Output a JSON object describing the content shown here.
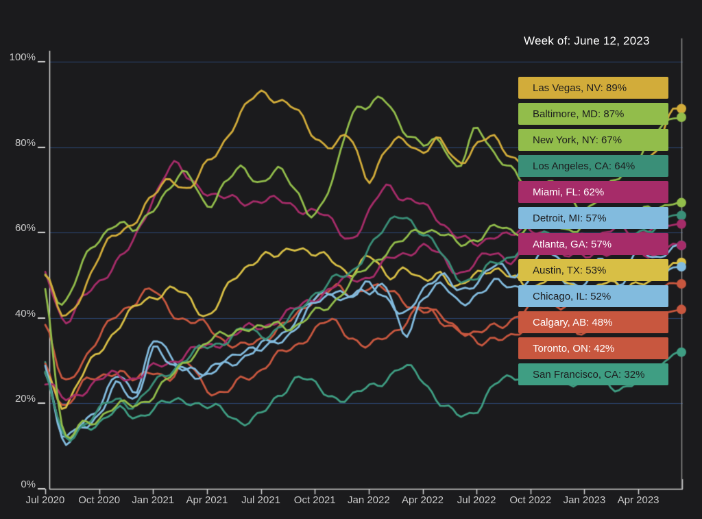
{
  "header": {
    "week_label": "Week of: June 12, 2023"
  },
  "colors": {
    "background": "#1b1b1d",
    "grid_line": "#2b4570",
    "axis_line": "#d6d6d6",
    "tick_text": "#c9c9c9",
    "header_text": "#ffffff",
    "cursor_line": "#8d8d8d",
    "chip_text_dark": "#1c1c1e",
    "chip_text_light": "#ffffff"
  },
  "chart_data": {
    "type": "line",
    "title": "",
    "cursor_date_label": "Week of: June 12, 2023",
    "x_unit": "month",
    "y_unit": "%",
    "ylim": [
      0,
      100
    ],
    "grid": "horizontal",
    "legend_position": "right",
    "months": [
      "Jul 2020",
      "Aug 2020",
      "Sep 2020",
      "Oct 2020",
      "Nov 2020",
      "Dec 2020",
      "Jan 2021",
      "Feb 2021",
      "Mar 2021",
      "Apr 2021",
      "May 2021",
      "Jun 2021",
      "Jul 2021",
      "Aug 2021",
      "Sep 2021",
      "Oct 2021",
      "Nov 2021",
      "Dec 2021",
      "Jan 2022",
      "Feb 2022",
      "Mar 2022",
      "Apr 2022",
      "May 2022",
      "Jun 2022",
      "Jul 2022",
      "Aug 2022",
      "Sep 2022",
      "Oct 2022",
      "Nov 2022",
      "Dec 2022",
      "Jan 2023",
      "Feb 2023",
      "Mar 2023",
      "Apr 2023",
      "May 2023",
      "Jun 2023"
    ],
    "x_ticks": [
      {
        "label": "Jul 2020",
        "month": 0
      },
      {
        "label": "Oct 2020",
        "month": 3
      },
      {
        "label": "Jan 2021",
        "month": 6
      },
      {
        "label": "Apr 2021",
        "month": 9
      },
      {
        "label": "Jul 2021",
        "month": 12
      },
      {
        "label": "Oct 2021",
        "month": 15
      },
      {
        "label": "Jan 2022",
        "month": 18
      },
      {
        "label": "Apr 2022",
        "month": 21
      },
      {
        "label": "Jul 2022",
        "month": 24
      },
      {
        "label": "Oct 2022",
        "month": 27
      },
      {
        "label": "Jan 2023",
        "month": 30
      },
      {
        "label": "Apr 2023",
        "month": 33
      }
    ],
    "y_ticks": [
      {
        "label": "100%",
        "value": 100
      },
      {
        "label": "80%",
        "value": 80
      },
      {
        "label": "60%",
        "value": 60
      },
      {
        "label": "40%",
        "value": 40
      },
      {
        "label": "20%",
        "value": 20
      },
      {
        "label": "0%",
        "value": 0
      }
    ],
    "series": [
      {
        "name": "Las Vegas, NV",
        "current": 89,
        "label": "Las Vegas, NV: 89%",
        "color": "#d2ac3a",
        "text": "dark",
        "values": [
          50,
          40,
          46,
          54,
          60,
          63,
          68,
          73,
          70,
          76,
          82,
          88,
          93,
          91,
          88,
          83,
          80,
          82,
          73,
          79,
          82,
          79,
          81,
          77,
          80,
          82,
          78,
          75,
          77,
          75,
          74,
          76,
          74,
          76,
          80,
          89
        ]
      },
      {
        "name": "Baltimore, MD",
        "current": 87,
        "label": "Baltimore, MD: 87%",
        "color": "#92bd4b",
        "text": "dark",
        "values": [
          49,
          44,
          52,
          58,
          63,
          60,
          66,
          71,
          73,
          67,
          71,
          75,
          72,
          74,
          70,
          64,
          72,
          88,
          89,
          91,
          84,
          80,
          82,
          75,
          84,
          79,
          74,
          70,
          72,
          68,
          66,
          69,
          73,
          78,
          83,
          87
        ]
      },
      {
        "name": "New York, NY",
        "current": 67,
        "label": "New York, NY: 67%",
        "color": "#92bd4b",
        "text": "dark",
        "values": [
          47,
          13,
          15,
          17,
          19,
          20,
          22,
          26,
          31,
          34,
          36,
          38,
          37,
          39,
          38,
          41,
          44,
          48,
          52,
          56,
          58,
          61,
          60,
          57,
          59,
          61,
          60,
          62,
          63,
          61,
          62,
          64,
          63,
          64,
          66,
          67
        ]
      },
      {
        "name": "Los Angeles, CA",
        "current": 64,
        "label": "Los Angeles, CA: 64%",
        "color": "#3a8f78",
        "text": "dark",
        "values": [
          27,
          12,
          15,
          18,
          21,
          20,
          24,
          28,
          31,
          33,
          35,
          37,
          36,
          38,
          41,
          46,
          49,
          50,
          57,
          61,
          64,
          60,
          55,
          50,
          49,
          53,
          55,
          58,
          60,
          58,
          57,
          59,
          58,
          60,
          62,
          64
        ]
      },
      {
        "name": "Miami, FL",
        "current": 62,
        "label": "Miami, FL: 62%",
        "color": "#a62c69",
        "text": "light",
        "values": [
          50,
          40,
          44,
          48,
          54,
          58,
          68,
          76,
          72,
          70,
          68,
          67,
          68,
          67,
          66,
          65,
          62,
          59,
          64,
          71,
          68,
          66,
          63,
          59,
          57,
          60,
          59,
          61,
          60,
          58,
          60,
          59,
          61,
          60,
          61,
          62
        ]
      },
      {
        "name": "Detroit, MI",
        "current": 57,
        "label": "Detroit, MI: 57%",
        "color": "#82bbde",
        "text": "dark",
        "values": [
          30,
          11,
          14,
          18,
          24,
          21,
          33,
          28,
          29,
          27,
          30,
          33,
          32,
          35,
          38,
          43,
          46,
          44,
          48,
          45,
          40,
          47,
          50,
          46,
          49,
          52,
          50,
          53,
          55,
          52,
          50,
          53,
          52,
          55,
          54,
          57
        ]
      },
      {
        "name": "Atlanta, GA",
        "current": 57,
        "label": "Atlanta, GA: 57%",
        "color": "#a62c69",
        "text": "light",
        "values": [
          25,
          21,
          23,
          25,
          27,
          26,
          28,
          30,
          32,
          33,
          35,
          37,
          38,
          40,
          42,
          45,
          47,
          49,
          50,
          53,
          55,
          57,
          54,
          51,
          53,
          55,
          54,
          56,
          57,
          55,
          54,
          56,
          55,
          56,
          55,
          57
        ]
      },
      {
        "name": "Austin, TX",
        "current": 53,
        "label": "Austin, TX: 53%",
        "color": "#d8bf45",
        "text": "dark",
        "values": [
          27,
          20,
          26,
          32,
          38,
          42,
          45,
          47,
          44,
          41,
          46,
          51,
          55,
          54,
          57,
          55,
          53,
          51,
          54,
          50,
          52,
          48,
          51,
          47,
          50,
          52,
          49,
          47,
          50,
          48,
          46,
          48,
          47,
          49,
          48,
          53
        ]
      },
      {
        "name": "Chicago, IL",
        "current": 52,
        "label": "Chicago, IL: 52%",
        "color": "#82bbde",
        "text": "dark",
        "values": [
          28,
          12,
          15,
          20,
          26,
          23,
          35,
          30,
          28,
          26,
          29,
          31,
          33,
          36,
          40,
          44,
          47,
          45,
          46,
          48,
          35,
          45,
          48,
          43,
          46,
          48,
          47,
          50,
          52,
          49,
          48,
          50,
          49,
          51,
          50,
          52
        ]
      },
      {
        "name": "Calgary, AB",
        "current": 48,
        "label": "Calgary, AB: 48%",
        "color": "#c8573f",
        "text": "light",
        "values": [
          38,
          25,
          30,
          35,
          41,
          44,
          46,
          42,
          39,
          38,
          35,
          33,
          35,
          38,
          40,
          45,
          47,
          45,
          48,
          46,
          44,
          42,
          40,
          38,
          36,
          38,
          40,
          42,
          44,
          43,
          44,
          45,
          46,
          45,
          46,
          48
        ]
      },
      {
        "name": "Toronto, ON",
        "current": 42,
        "label": "Toronto, ON: 42%",
        "color": "#c8573f",
        "text": "light",
        "values": [
          28,
          20,
          24,
          26,
          28,
          25,
          28,
          26,
          29,
          24,
          22,
          26,
          28,
          31,
          34,
          37,
          39,
          36,
          33,
          36,
          39,
          42,
          40,
          37,
          34,
          36,
          35,
          38,
          40,
          38,
          37,
          39,
          38,
          40,
          39,
          42
        ]
      },
      {
        "name": "San Francisco, CA",
        "current": 32,
        "label": "San Francisco, CA: 32%",
        "color": "#3f9e83",
        "text": "dark",
        "values": [
          30,
          12,
          14,
          16,
          18,
          17,
          19,
          20,
          21,
          19,
          18,
          16,
          17,
          22,
          26,
          24,
          22,
          21,
          24,
          26,
          28,
          26,
          20,
          17,
          19,
          24,
          26,
          28,
          27,
          25,
          26,
          25,
          24,
          25,
          28,
          32
        ]
      }
    ]
  }
}
